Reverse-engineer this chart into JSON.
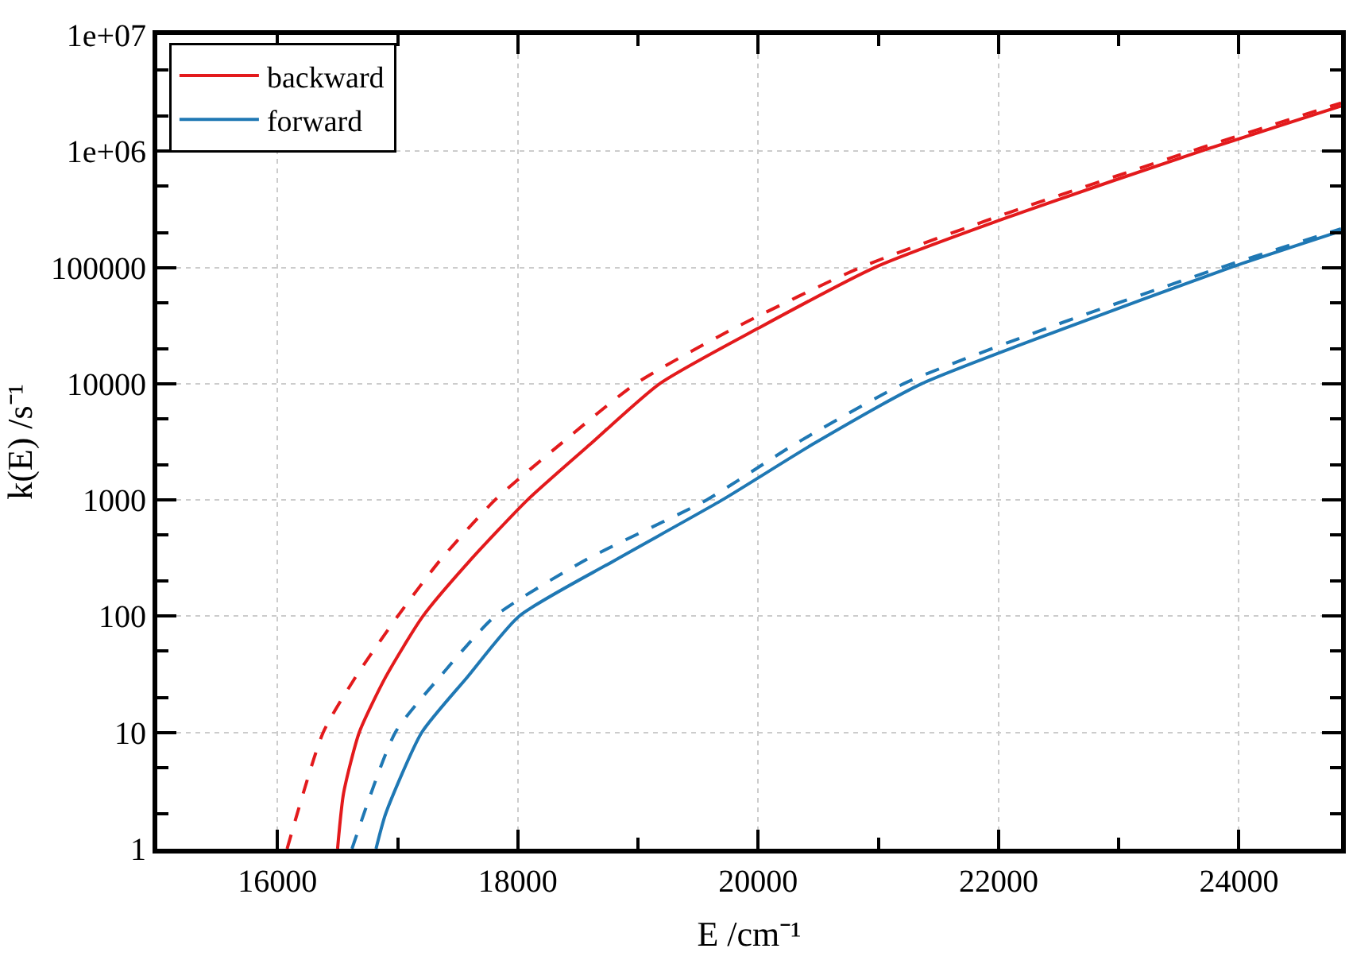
{
  "chart_data": {
    "type": "line",
    "xlabel": "E /cm⁻¹",
    "ylabel": "k(E) /s⁻¹",
    "log": "y",
    "grid": true,
    "legend": "top left",
    "marker": "none",
    "xlim": [
      15000,
      24850
    ],
    "xticks": [
      16000,
      {
        "value": 17000,
        "label": null
      },
      18000,
      {
        "value": 19000,
        "label": null
      },
      20000,
      {
        "value": 21000,
        "label": null
      },
      22000,
      {
        "value": 23000,
        "label": null
      },
      24000
    ],
    "ylim": [
      1,
      10000000
    ],
    "yticks": [
      1,
      10,
      100,
      1000,
      10000,
      100000,
      {
        "value": 1000000,
        "label": "1e+06"
      },
      {
        "value": 10000000,
        "label": "1e+07"
      }
    ],
    "series": [
      {
        "name": "backward",
        "color": "#e31a1c",
        "line_style": "solid",
        "x": [
          16500,
          16550,
          16680,
          16900,
          17210,
          17600,
          18080,
          18600,
          19180,
          20000,
          20970,
          22200,
          23680,
          24850
        ],
        "values": [
          1,
          3,
          10,
          30,
          100,
          300,
          1000,
          3000,
          10000,
          30000,
          100000,
          300000,
          1000000,
          2450000
        ]
      },
      {
        "name": "forward",
        "color": "#1f78b4",
        "line_style": "solid",
        "x": [
          16820,
          16900,
          17200,
          17580,
          18010,
          18800,
          19700,
          20450,
          21360,
          22550,
          23930,
          24850
        ],
        "values": [
          1,
          2,
          10,
          30,
          100,
          300,
          1000,
          3000,
          10000,
          30000,
          100000,
          206000
        ]
      },
      {
        "color": "#e31a1c",
        "line_style": "dashed",
        "x": [
          16080,
          16380,
          16650,
          17000,
          17350,
          17810,
          18350,
          18980,
          19800,
          20850,
          22100,
          23600,
          24850
        ],
        "values": [
          1,
          10,
          30,
          100,
          300,
          1000,
          3000,
          10000,
          30000,
          100000,
          300000,
          1000000,
          2600000
        ]
      },
      {
        "color": "#1f78b4",
        "line_style": "dashed",
        "x": [
          16620,
          16980,
          17350,
          17810,
          18550,
          19570,
          20300,
          21210,
          22400,
          23850,
          24850
        ],
        "values": [
          1,
          10,
          30,
          100,
          300,
          1000,
          3000,
          10000,
          30000,
          100000,
          215000
        ]
      }
    ]
  }
}
